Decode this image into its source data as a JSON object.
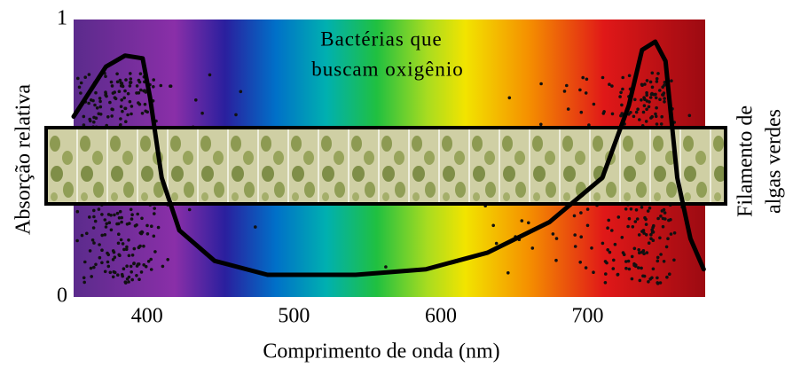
{
  "chart_data": {
    "type": "line",
    "y_label": "Absorção relativa",
    "x_label": "Comprimento de onda (nm)",
    "annotation": [
      "Bactérias que",
      "buscam oxigênio"
    ],
    "side_label": [
      "Filamento de",
      "algas verdes"
    ],
    "x": [
      350,
      372,
      385,
      397,
      402,
      410,
      422,
      446,
      482,
      542,
      590,
      632,
      674,
      710,
      728,
      737,
      746,
      753,
      761,
      770,
      779
    ],
    "values": [
      0.65,
      0.83,
      0.87,
      0.86,
      0.72,
      0.43,
      0.24,
      0.13,
      0.08,
      0.08,
      0.1,
      0.16,
      0.27,
      0.43,
      0.69,
      0.89,
      0.92,
      0.85,
      0.43,
      0.21,
      0.1
    ],
    "color": "#000000",
    "xlim": [
      350,
      780
    ],
    "xticks": [
      400,
      500,
      600,
      700
    ],
    "ylim": [
      0,
      1
    ],
    "yticks": [
      0,
      1
    ]
  }
}
